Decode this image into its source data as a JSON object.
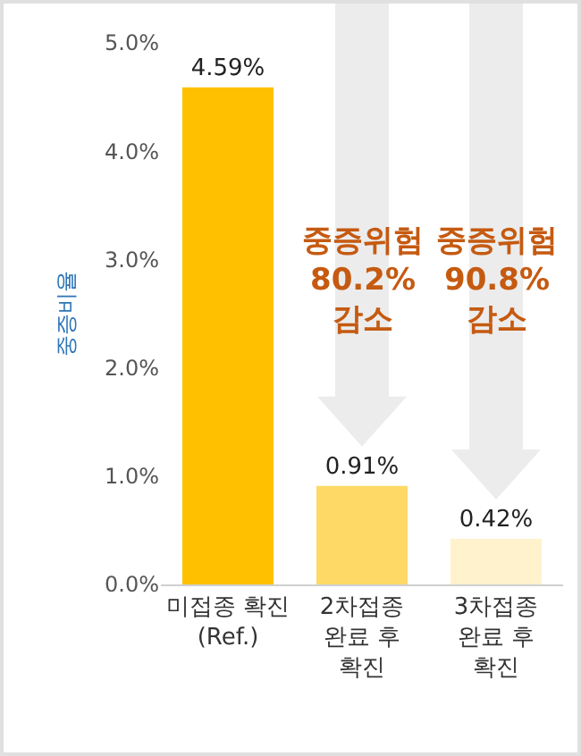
{
  "chart_data": {
    "type": "bar",
    "ylabel": "중증비율",
    "categories": [
      "미접종 확진\n(Ref.)",
      "2차접종\n완료 후\n확진",
      "3차접종\n완료 후\n확진"
    ],
    "values": [
      4.59,
      0.91,
      0.42
    ],
    "colors": [
      "#ffc000",
      "#ffd966",
      "#fff2cc"
    ],
    "value_labels": [
      "4.59%",
      "0.91%",
      "0.42%"
    ],
    "ylim": [
      0,
      5
    ],
    "yticks": [
      {
        "value": 0,
        "label": "0.0%"
      },
      {
        "value": 1,
        "label": "1.0%"
      },
      {
        "value": 2,
        "label": "2.0%"
      },
      {
        "value": 3,
        "label": "3.0%"
      },
      {
        "value": 4,
        "label": "4.0%"
      },
      {
        "value": 5,
        "label": "5.0%"
      }
    ],
    "grid": false,
    "annotations": [
      "중증위험\n80.2%\n감소",
      "중증위험\n90.8%\n감소"
    ]
  }
}
